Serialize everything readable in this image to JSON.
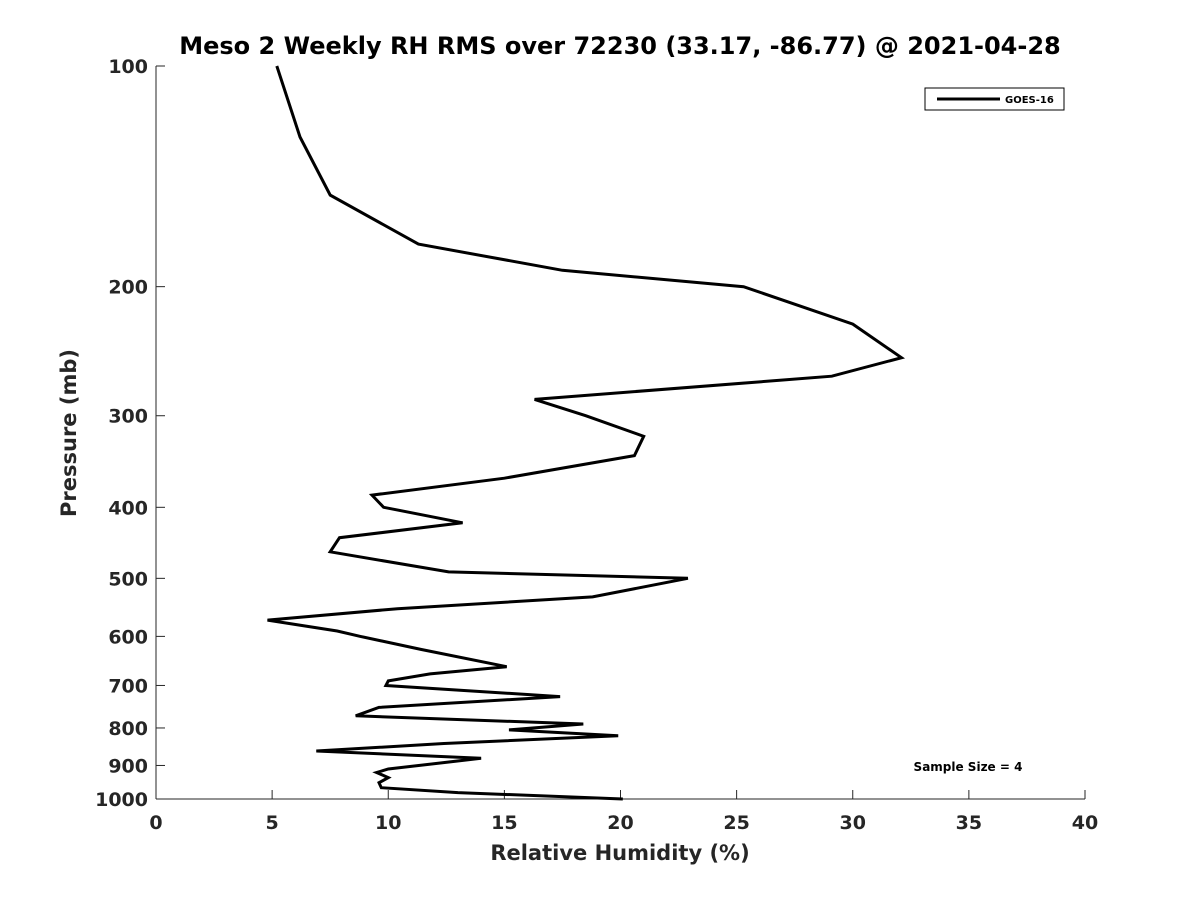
{
  "chart_data": {
    "type": "line",
    "title": "Meso 2 Weekly RH RMS over 72230 (33.17, -86.77) @ 2021-04-28",
    "xlabel": "Relative Humidity (%)",
    "ylabel": "Pressure (mb)",
    "xlim": [
      0,
      40
    ],
    "ylim": [
      100,
      1000
    ],
    "yscale": "log",
    "y_reversed": true,
    "x_ticks": [
      0,
      5,
      10,
      15,
      20,
      25,
      30,
      35,
      40
    ],
    "x_tick_labels": [
      "0",
      "5",
      "10",
      "15",
      "20",
      "25",
      "30",
      "35",
      "40"
    ],
    "y_ticks": [
      100,
      200,
      300,
      400,
      500,
      600,
      700,
      800,
      900,
      1000
    ],
    "y_tick_labels": [
      "100",
      "200",
      "300",
      "400",
      "500",
      "600",
      "700",
      "800",
      "900",
      "1000"
    ],
    "legend": {
      "position": "top-right",
      "entries": [
        "GOES-16"
      ]
    },
    "annotation": "Sample Size = 4",
    "series": [
      {
        "name": "GOES-16",
        "color": "#000000",
        "rh": [
          5.2,
          6.2,
          7.5,
          11.3,
          17.5,
          25.3,
          30.0,
          32.1,
          29.1,
          16.3,
          18.5,
          21.0,
          20.6,
          15.0,
          9.3,
          9.8,
          13.2,
          7.9,
          7.5,
          12.6,
          22.9,
          18.8,
          10.4,
          4.8,
          7.8,
          8.8,
          11.4,
          15.1,
          11.8,
          10.0,
          9.9,
          17.4,
          9.6,
          8.6,
          18.4,
          15.2,
          19.9,
          12.4,
          6.9,
          14.0,
          10.0,
          9.5,
          10.0,
          9.6,
          9.7,
          13.0,
          20.1
        ],
        "pressure": [
          100,
          125,
          150,
          175,
          190,
          200,
          225,
          250,
          265,
          285,
          300,
          320,
          340,
          365,
          385,
          400,
          420,
          440,
          460,
          490,
          500,
          530,
          550,
          570,
          590,
          600,
          625,
          660,
          675,
          690,
          700,
          725,
          750,
          770,
          790,
          805,
          820,
          840,
          860,
          880,
          910,
          920,
          935,
          950,
          965,
          980,
          1000
        ]
      }
    ]
  }
}
